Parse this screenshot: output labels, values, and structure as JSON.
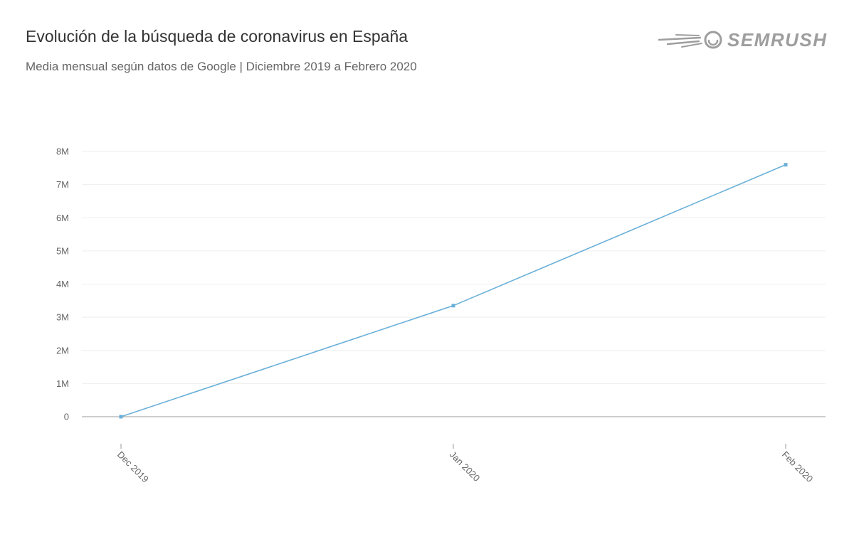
{
  "header": {
    "title": "Evolución de la búsqueda de coronavirus en España",
    "subtitle": "Media mensual según datos de Google | Diciembre 2019 a Febrero 2020",
    "brand": "SEMRUSH"
  },
  "colors": {
    "series": "#6ab0d8",
    "grid": "#eeeeee",
    "axis": "#999999",
    "text": "#666666",
    "logo": "#9e9e9e"
  },
  "chart_data": {
    "type": "line",
    "title": "Evolución de la búsqueda de coronavirus en España",
    "subtitle": "Media mensual según datos de Google | Diciembre 2019 a Febrero 2020",
    "x": [
      "Dec 2019",
      "Jan 2020",
      "Feb 2020"
    ],
    "series": [
      {
        "values": [
          0,
          3350000,
          7600000
        ]
      }
    ],
    "ylim": [
      0,
      8000000
    ],
    "yticks": [
      0,
      1000000,
      2000000,
      3000000,
      4000000,
      5000000,
      6000000,
      7000000,
      8000000
    ],
    "ytick_labels": [
      "0",
      "1M",
      "2M",
      "3M",
      "4M",
      "5M",
      "6M",
      "7M",
      "8M"
    ],
    "xlabel": "",
    "ylabel": "",
    "grid": true,
    "legend": "none"
  }
}
